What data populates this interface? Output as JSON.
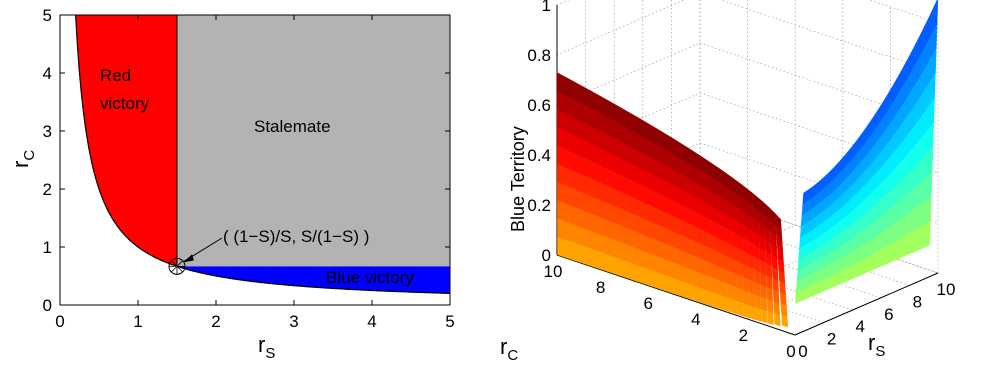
{
  "chart_data": [
    {
      "type": "area",
      "xlabel_main": "r",
      "xlabel_sub": "S",
      "ylabel_main": "r",
      "ylabel_sub": "C",
      "xlim": [
        0,
        5
      ],
      "ylim": [
        0,
        5
      ],
      "xticks": [
        "0",
        "1",
        "2",
        "3",
        "4",
        "5"
      ],
      "yticks": [
        "0",
        "1",
        "2",
        "3",
        "4",
        "5"
      ],
      "regions": [
        {
          "label_lines": [
            "Red",
            "victory"
          ],
          "color": "#ff0000"
        },
        {
          "label_lines": [
            "Stalemate"
          ],
          "color": "#b3b3b3"
        },
        {
          "label_lines": [
            "Blue victory"
          ],
          "color": "#0000ff"
        }
      ],
      "critical_point": {
        "x": 1.5,
        "y": 0.667
      },
      "annotation": "( (1−S)/S, S/(1−S) )",
      "boundary_curve": "y = 1/x",
      "grid": false
    },
    {
      "type": "surface",
      "zlabel": "Blue Territory",
      "xlabel_main": "r",
      "xlabel_sub": "C",
      "ylabel_main": "r",
      "ylabel_sub": "S",
      "zlim": [
        0,
        1
      ],
      "zticks": [
        "0",
        "0.2",
        "0.4",
        "0.6",
        "0.8",
        "1"
      ],
      "rc_ticks": [
        "10",
        "8",
        "6",
        "4",
        "2",
        "0"
      ],
      "rs_ticks": [
        "0",
        "2",
        "4",
        "6",
        "8",
        "10"
      ],
      "colormap": "jet",
      "grid": true
    }
  ]
}
